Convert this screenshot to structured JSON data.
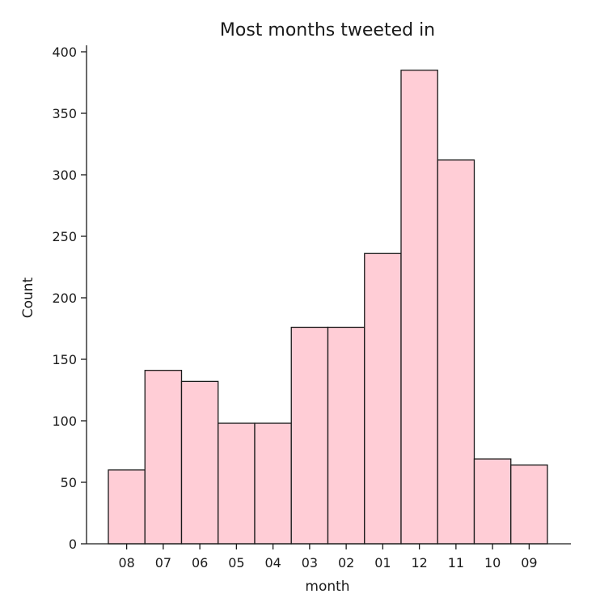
{
  "chart_data": {
    "type": "bar",
    "title": "Most months tweeted in",
    "xlabel": "month",
    "ylabel": "Count",
    "categories": [
      "08",
      "07",
      "06",
      "05",
      "04",
      "03",
      "02",
      "01",
      "12",
      "11",
      "10",
      "09"
    ],
    "values": [
      60,
      141,
      132,
      98,
      98,
      176,
      176,
      236,
      385,
      312,
      69,
      64
    ],
    "ylim": [
      0,
      400
    ],
    "yticks": [
      0,
      50,
      100,
      150,
      200,
      250,
      300,
      350,
      400
    ],
    "bar_color": "#ffcdd6",
    "edge_color": "#1a1a1a",
    "grid": false,
    "legend": "none"
  }
}
